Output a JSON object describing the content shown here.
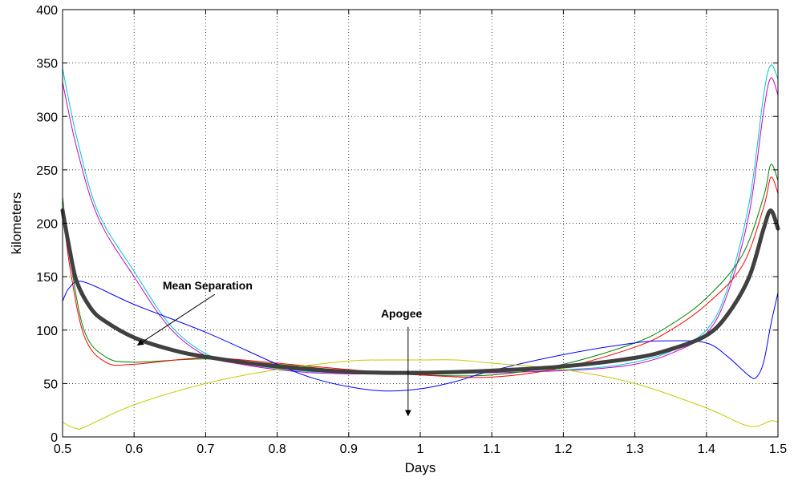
{
  "chart_data": {
    "type": "line",
    "title": "",
    "xlabel": "Days",
    "ylabel": "kilometers",
    "xlim": [
      0.5,
      1.5
    ],
    "ylim": [
      0,
      400
    ],
    "grid": true,
    "x_ticks": [
      "0.5",
      "0.6",
      "0.7",
      "0.8",
      "0.9",
      "1",
      "1.1",
      "1.2",
      "1.3",
      "1.4",
      "1.5"
    ],
    "y_ticks": [
      "0",
      "50",
      "100",
      "150",
      "200",
      "250",
      "300",
      "350",
      "400"
    ],
    "series": [
      {
        "color": "#00c8c8",
        "width": 1,
        "points": [
          [
            0.5,
            345
          ],
          [
            0.52,
            280
          ],
          [
            0.55,
            210
          ],
          [
            0.6,
            155
          ],
          [
            0.65,
            105
          ],
          [
            0.7,
            78
          ],
          [
            0.75,
            69
          ],
          [
            0.8,
            64
          ],
          [
            0.85,
            61
          ],
          [
            0.9,
            60
          ],
          [
            0.95,
            60
          ],
          [
            1.0,
            60
          ],
          [
            1.05,
            60
          ],
          [
            1.1,
            61
          ],
          [
            1.15,
            62
          ],
          [
            1.2,
            63
          ],
          [
            1.25,
            65
          ],
          [
            1.3,
            70
          ],
          [
            1.35,
            80
          ],
          [
            1.4,
            100
          ],
          [
            1.43,
            140
          ],
          [
            1.46,
            220
          ],
          [
            1.48,
            320
          ],
          [
            1.49,
            348
          ],
          [
            1.5,
            335
          ]
        ]
      },
      {
        "color": "#c800c8",
        "width": 1,
        "points": [
          [
            0.5,
            332
          ],
          [
            0.52,
            270
          ],
          [
            0.55,
            205
          ],
          [
            0.6,
            150
          ],
          [
            0.65,
            102
          ],
          [
            0.7,
            76
          ],
          [
            0.75,
            68
          ],
          [
            0.8,
            63
          ],
          [
            0.85,
            60
          ],
          [
            0.9,
            59
          ],
          [
            0.95,
            59
          ],
          [
            1.0,
            59
          ],
          [
            1.05,
            60
          ],
          [
            1.1,
            60
          ],
          [
            1.15,
            61
          ],
          [
            1.2,
            62
          ],
          [
            1.25,
            64
          ],
          [
            1.3,
            68
          ],
          [
            1.35,
            78
          ],
          [
            1.4,
            97
          ],
          [
            1.43,
            135
          ],
          [
            1.46,
            210
          ],
          [
            1.48,
            305
          ],
          [
            1.49,
            336
          ],
          [
            1.5,
            320
          ]
        ]
      },
      {
        "color": "#008000",
        "width": 1,
        "points": [
          [
            0.5,
            225
          ],
          [
            0.51,
            170
          ],
          [
            0.53,
            100
          ],
          [
            0.56,
            75
          ],
          [
            0.6,
            70
          ],
          [
            0.7,
            73
          ],
          [
            0.8,
            68
          ],
          [
            0.9,
            62
          ],
          [
            1.0,
            58
          ],
          [
            1.1,
            58
          ],
          [
            1.2,
            68
          ],
          [
            1.3,
            88
          ],
          [
            1.35,
            105
          ],
          [
            1.4,
            130
          ],
          [
            1.45,
            170
          ],
          [
            1.48,
            225
          ],
          [
            1.49,
            255
          ],
          [
            1.5,
            240
          ]
        ]
      },
      {
        "color": "#ff0000",
        "width": 1,
        "points": [
          [
            0.5,
            215
          ],
          [
            0.51,
            160
          ],
          [
            0.53,
            95
          ],
          [
            0.56,
            70
          ],
          [
            0.6,
            68
          ],
          [
            0.7,
            74
          ],
          [
            0.8,
            69
          ],
          [
            0.9,
            63
          ],
          [
            1.0,
            58
          ],
          [
            1.1,
            56
          ],
          [
            1.2,
            65
          ],
          [
            1.3,
            84
          ],
          [
            1.35,
            100
          ],
          [
            1.4,
            124
          ],
          [
            1.45,
            160
          ],
          [
            1.48,
            215
          ],
          [
            1.49,
            243
          ],
          [
            1.5,
            228
          ]
        ]
      },
      {
        "color": "#0000ff",
        "width": 1,
        "points": [
          [
            0.5,
            127
          ],
          [
            0.51,
            140
          ],
          [
            0.53,
            145
          ],
          [
            0.6,
            124
          ],
          [
            0.7,
            98
          ],
          [
            0.8,
            68
          ],
          [
            0.85,
            55
          ],
          [
            0.9,
            47
          ],
          [
            0.95,
            43
          ],
          [
            1.0,
            45
          ],
          [
            1.05,
            52
          ],
          [
            1.1,
            62
          ],
          [
            1.2,
            77
          ],
          [
            1.3,
            88
          ],
          [
            1.35,
            90
          ],
          [
            1.4,
            88
          ],
          [
            1.43,
            75
          ],
          [
            1.46,
            57
          ],
          [
            1.47,
            56
          ],
          [
            1.48,
            70
          ],
          [
            1.49,
            105
          ],
          [
            1.5,
            135
          ]
        ]
      },
      {
        "color": "#c8c800",
        "width": 1,
        "points": [
          [
            0.5,
            14
          ],
          [
            0.51,
            10
          ],
          [
            0.52,
            8
          ],
          [
            0.53,
            9
          ],
          [
            0.6,
            30
          ],
          [
            0.7,
            50
          ],
          [
            0.8,
            63
          ],
          [
            0.9,
            71
          ],
          [
            0.95,
            72
          ],
          [
            1.0,
            72
          ],
          [
            1.05,
            72
          ],
          [
            1.1,
            69
          ],
          [
            1.2,
            63
          ],
          [
            1.3,
            50
          ],
          [
            1.4,
            27
          ],
          [
            1.45,
            12
          ],
          [
            1.47,
            10
          ],
          [
            1.49,
            15
          ],
          [
            1.5,
            14
          ]
        ]
      },
      {
        "color": "#404040",
        "width": 5,
        "points": [
          [
            0.5,
            212
          ],
          [
            0.51,
            175
          ],
          [
            0.52,
            145
          ],
          [
            0.54,
            120
          ],
          [
            0.56,
            108
          ],
          [
            0.6,
            93
          ],
          [
            0.65,
            82
          ],
          [
            0.7,
            75
          ],
          [
            0.8,
            66
          ],
          [
            0.9,
            61
          ],
          [
            1.0,
            60
          ],
          [
            1.1,
            62
          ],
          [
            1.2,
            66
          ],
          [
            1.3,
            74
          ],
          [
            1.35,
            82
          ],
          [
            1.4,
            95
          ],
          [
            1.43,
            115
          ],
          [
            1.46,
            150
          ],
          [
            1.48,
            195
          ],
          [
            1.49,
            212
          ],
          [
            1.5,
            195
          ]
        ]
      }
    ],
    "annotations": [
      {
        "text": "Mean Separation",
        "text_x": 0.64,
        "text_y": 138,
        "arrow_to_x": 0.605,
        "arrow_to_y": 86
      },
      {
        "text": "Apogee",
        "text_x": 0.945,
        "text_y": 112,
        "arrow_from_x": 0.983,
        "arrow_from_y": 103,
        "arrow_to_x": 0.983,
        "arrow_to_y": 20
      }
    ]
  }
}
